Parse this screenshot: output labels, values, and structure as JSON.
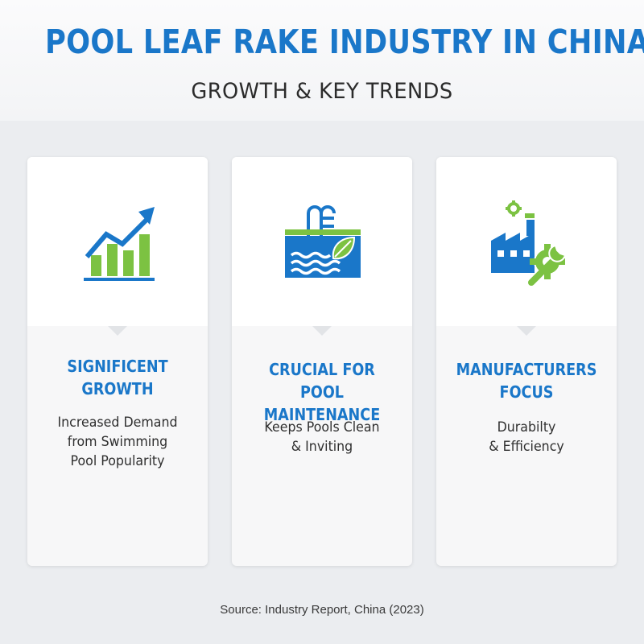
{
  "header": {
    "title": "POOL LEAF RAKE INDUSTRY IN CHINA",
    "subtitle": "GROWTH & KEY TRENDS"
  },
  "colors": {
    "blue": "#1a77c9",
    "green": "#7cc242",
    "text": "#2f2f2f"
  },
  "cards": [
    {
      "icon": "growth-chart-icon",
      "heading": [
        "SIGNIFICENT",
        "GROWTH"
      ],
      "body": [
        "Increased Demand",
        "from Swimming",
        "Pool Popularity"
      ]
    },
    {
      "icon": "pool-leaf-icon",
      "heading": [
        "CRUCIAL FOR POOL",
        "MAINTENANCE"
      ],
      "body": [
        "Keeps Pools Clean",
        "& Inviting"
      ]
    },
    {
      "icon": "factory-wrench-icon",
      "heading": [
        "MANUFACTURERS",
        "FOCUS"
      ],
      "body": [
        "Durabilty",
        "& Efficiency"
      ]
    }
  ],
  "footer": {
    "source": "Source: Industry Report, China (2023)"
  }
}
